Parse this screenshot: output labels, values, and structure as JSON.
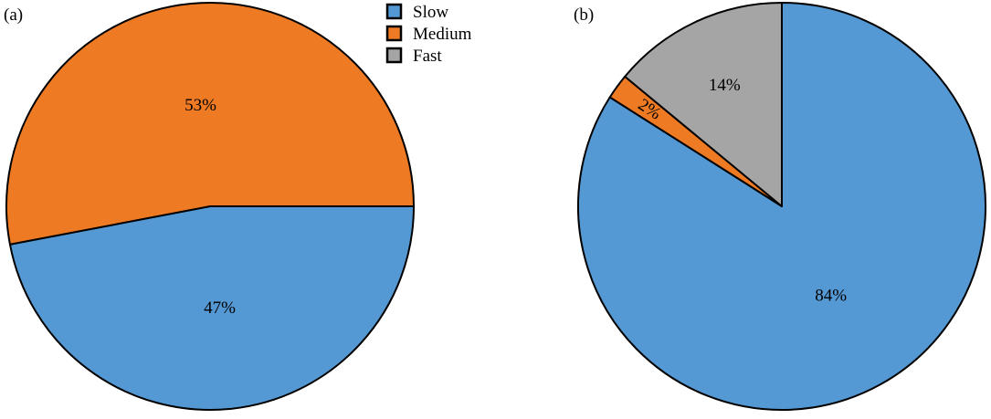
{
  "chart_data": [
    {
      "type": "pie",
      "panel_label": "(a)",
      "start": "3 o'clock",
      "direction": "clockwise",
      "slices": [
        {
          "name": "Slow",
          "value": 47,
          "label": "47%",
          "color": "#5599D4"
        },
        {
          "name": "Medium",
          "value": 53,
          "label": "53%",
          "color": "#EE7B24"
        }
      ]
    },
    {
      "type": "pie",
      "panel_label": "(b)",
      "start": "12 o'clock",
      "direction": "clockwise",
      "slices": [
        {
          "name": "Slow",
          "value": 84,
          "label": "84%",
          "color": "#5599D4"
        },
        {
          "name": "Medium",
          "value": 2,
          "label": "2%",
          "color": "#EE7B24"
        },
        {
          "name": "Fast",
          "value": 14,
          "label": "14%",
          "color": "#A5A5A5"
        }
      ]
    }
  ],
  "legend": {
    "placement": "top-center",
    "entries": [
      {
        "name": "Slow",
        "color": "#5599D4"
      },
      {
        "name": "Medium",
        "color": "#EE7B24"
      },
      {
        "name": "Fast",
        "color": "#A5A5A5"
      }
    ]
  }
}
